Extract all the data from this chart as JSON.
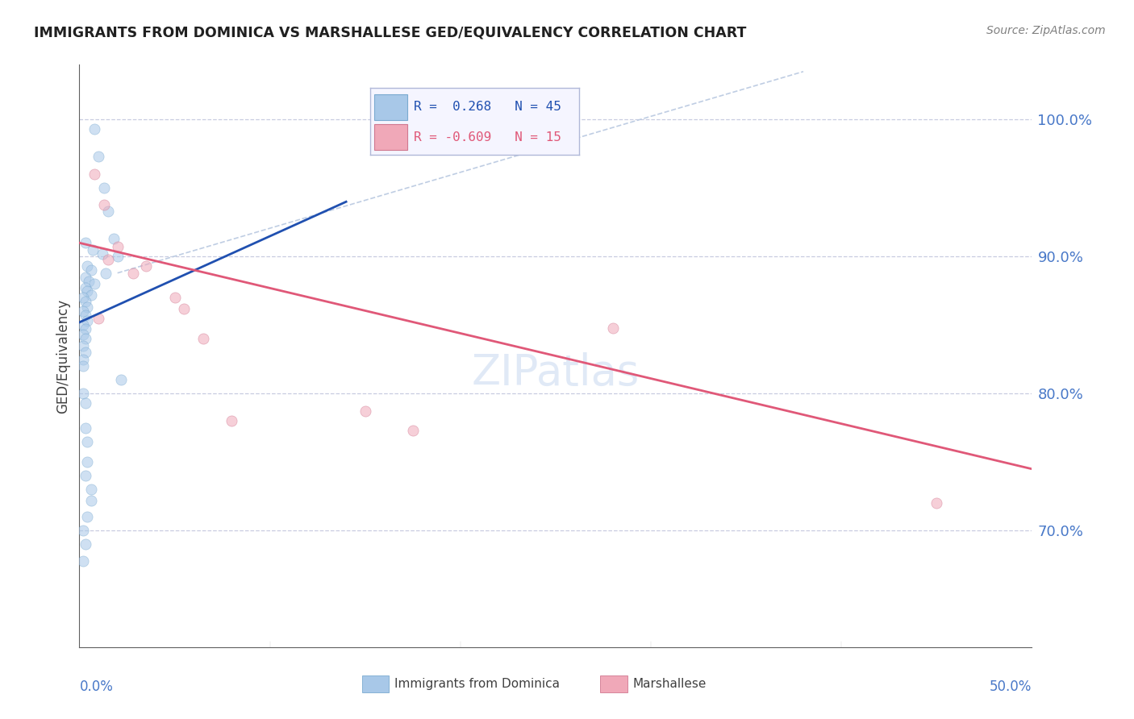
{
  "title": "IMMIGRANTS FROM DOMINICA VS MARSHALLESE GED/EQUIVALENCY CORRELATION CHART",
  "source": "Source: ZipAtlas.com",
  "ylabel": "GED/Equivalency",
  "ytick_values": [
    0.7,
    0.8,
    0.9,
    1.0
  ],
  "xmin": 0.0,
  "xmax": 0.5,
  "ymin": 0.615,
  "ymax": 1.04,
  "legend_entry_blue": "R =  0.268   N = 45",
  "legend_entry_pink": "R = -0.609   N = 15",
  "blue_dot_color": "#a8c8e8",
  "blue_dot_edge": "#7aaad0",
  "pink_dot_color": "#f0a8b8",
  "pink_dot_edge": "#d07890",
  "blue_line_color": "#2050b0",
  "pink_line_color": "#e05878",
  "diag_line_color": "#b8c8e0",
  "background_color": "#ffffff",
  "dot_alpha": 0.55,
  "dot_size": 90,
  "grid_color": "#c8cce0",
  "title_color": "#202020",
  "axis_label_color": "#4878c8",
  "source_color": "#808080",
  "blue_dots": [
    [
      0.008,
      0.993
    ],
    [
      0.01,
      0.973
    ],
    [
      0.015,
      0.933
    ],
    [
      0.013,
      0.95
    ],
    [
      0.018,
      0.913
    ],
    [
      0.003,
      0.91
    ],
    [
      0.007,
      0.905
    ],
    [
      0.012,
      0.902
    ],
    [
      0.02,
      0.9
    ],
    [
      0.004,
      0.893
    ],
    [
      0.006,
      0.89
    ],
    [
      0.014,
      0.888
    ],
    [
      0.003,
      0.885
    ],
    [
      0.005,
      0.882
    ],
    [
      0.008,
      0.88
    ],
    [
      0.003,
      0.877
    ],
    [
      0.004,
      0.875
    ],
    [
      0.006,
      0.872
    ],
    [
      0.002,
      0.87
    ],
    [
      0.003,
      0.867
    ],
    [
      0.004,
      0.863
    ],
    [
      0.002,
      0.86
    ],
    [
      0.003,
      0.857
    ],
    [
      0.004,
      0.853
    ],
    [
      0.002,
      0.85
    ],
    [
      0.003,
      0.847
    ],
    [
      0.002,
      0.843
    ],
    [
      0.003,
      0.84
    ],
    [
      0.002,
      0.835
    ],
    [
      0.003,
      0.83
    ],
    [
      0.002,
      0.825
    ],
    [
      0.002,
      0.82
    ],
    [
      0.022,
      0.81
    ],
    [
      0.002,
      0.8
    ],
    [
      0.003,
      0.793
    ],
    [
      0.003,
      0.775
    ],
    [
      0.004,
      0.765
    ],
    [
      0.004,
      0.75
    ],
    [
      0.003,
      0.74
    ],
    [
      0.006,
      0.73
    ],
    [
      0.006,
      0.722
    ],
    [
      0.004,
      0.71
    ],
    [
      0.002,
      0.7
    ],
    [
      0.003,
      0.69
    ],
    [
      0.002,
      0.678
    ]
  ],
  "pink_dots": [
    [
      0.008,
      0.96
    ],
    [
      0.013,
      0.938
    ],
    [
      0.02,
      0.907
    ],
    [
      0.015,
      0.898
    ],
    [
      0.035,
      0.893
    ],
    [
      0.028,
      0.888
    ],
    [
      0.05,
      0.87
    ],
    [
      0.055,
      0.862
    ],
    [
      0.01,
      0.855
    ],
    [
      0.065,
      0.84
    ],
    [
      0.08,
      0.78
    ],
    [
      0.15,
      0.787
    ],
    [
      0.175,
      0.773
    ],
    [
      0.28,
      0.848
    ],
    [
      0.45,
      0.72
    ]
  ],
  "blue_line": {
    "x0": 0.0,
    "x1": 0.14,
    "y0": 0.852,
    "y1": 0.94
  },
  "pink_line": {
    "x0": 0.0,
    "x1": 0.5,
    "y0": 0.91,
    "y1": 0.745
  },
  "diag_line": {
    "x0": 0.02,
    "x1": 0.38,
    "y0": 0.888,
    "y1": 1.035
  }
}
